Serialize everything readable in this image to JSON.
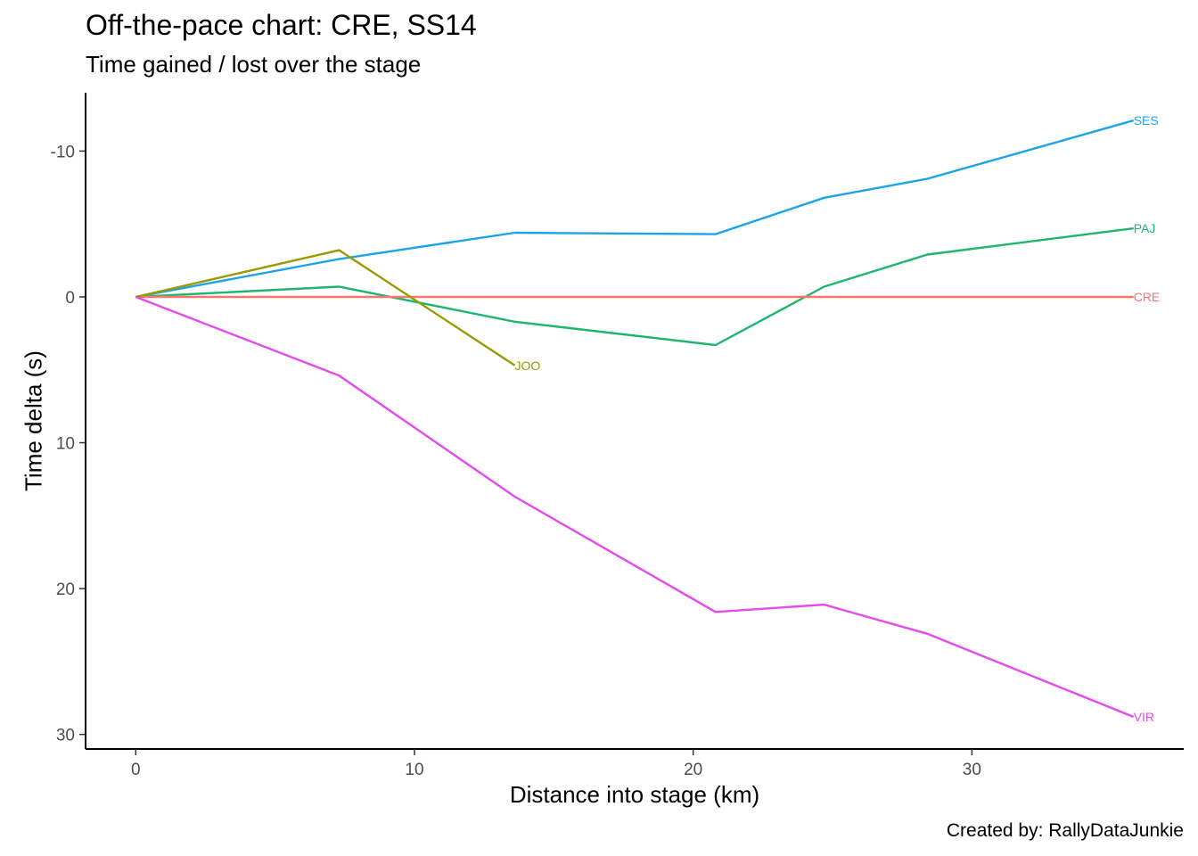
{
  "chart_data": {
    "type": "line",
    "title": "Off-the-pace chart: CRE, SS14",
    "subtitle": "Time gained / lost over the stage",
    "xlabel": "Distance into stage (km)",
    "ylabel": "Time delta (s)",
    "caption": "Created by: RallyDataJunkie",
    "xlim": [
      -1.8,
      37.6
    ],
    "ylim": [
      -14,
      31
    ],
    "y_reversed": true,
    "x_ticks": [
      0,
      10,
      20,
      30
    ],
    "y_ticks": [
      -10,
      0,
      10,
      20,
      30
    ],
    "y_tick_labels": [
      "-10",
      "0",
      "10",
      "20",
      "30"
    ],
    "grid": false,
    "legend": "none (series labelled at line ends)",
    "series": [
      {
        "name": "SES",
        "color": "#1ba3e8",
        "x": [
          0,
          7.3,
          13.6,
          20.8,
          24.7,
          28.4,
          35.8
        ],
        "y": [
          0,
          -2.6,
          -4.4,
          -4.3,
          -6.8,
          -8.1,
          -12.1
        ]
      },
      {
        "name": "PAJ",
        "color": "#1fb56f",
        "x": [
          0,
          7.3,
          13.6,
          20.8,
          24.7,
          28.4,
          35.8
        ],
        "y": [
          0,
          -0.7,
          1.7,
          3.3,
          -0.7,
          -2.9,
          -4.7
        ]
      },
      {
        "name": "CRE",
        "color": "#f8766d",
        "x": [
          0,
          7.3,
          13.6,
          20.8,
          24.7,
          28.4,
          35.8
        ],
        "y": [
          0,
          0,
          0,
          0,
          0,
          0,
          0
        ]
      },
      {
        "name": "JOO",
        "color": "#9a9a00",
        "x": [
          0,
          7.3,
          13.6
        ],
        "y": [
          0,
          -3.2,
          4.7
        ]
      },
      {
        "name": "VIR",
        "color": "#e44aed",
        "x": [
          0,
          7.3,
          13.6,
          20.8,
          24.7,
          28.4,
          35.8
        ],
        "y": [
          0,
          5.4,
          13.7,
          21.6,
          21.1,
          23.1,
          28.8
        ]
      }
    ]
  }
}
